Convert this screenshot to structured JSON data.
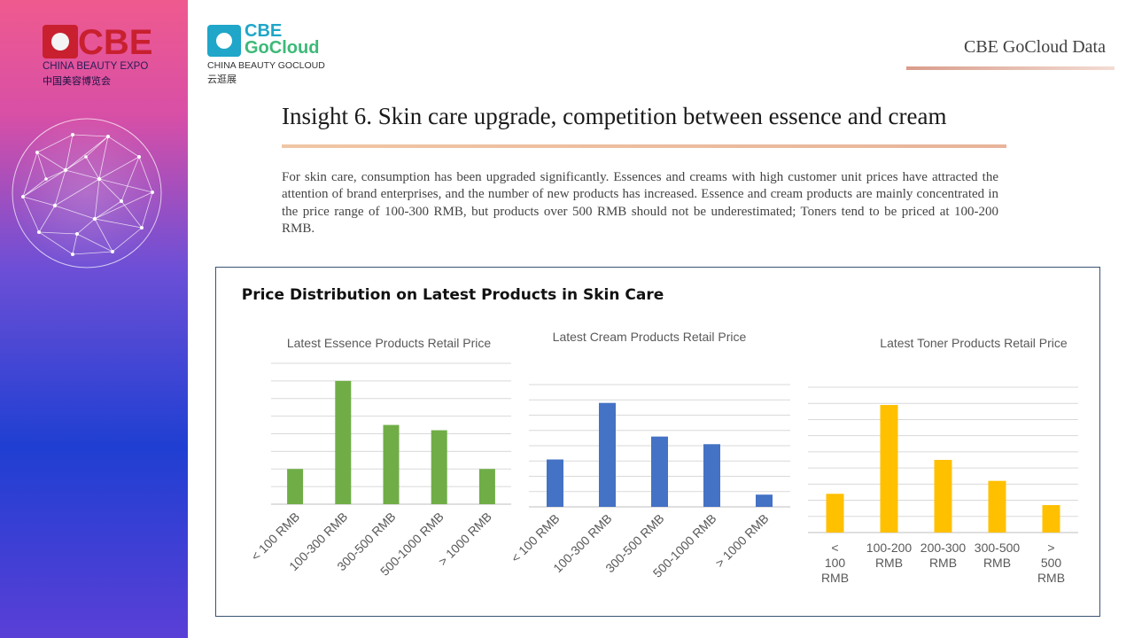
{
  "sidebar_logo": {
    "brand": "CBE",
    "subtitle": "CHINA BEAUTY EXPO",
    "chinese": "中国美容博览会"
  },
  "gocloud_logo": {
    "line1": "CBE",
    "line2": "GoCloud",
    "subtitle": "CHINA BEAUTY GOCLOUD",
    "chinese": "云逛展"
  },
  "header": {
    "label": "CBE GoCloud Data"
  },
  "slide": {
    "title": "Insight 6. Skin care upgrade, competition between essence and cream",
    "body": "For skin care, consumption has been upgraded significantly. Essences and creams with high customer unit prices have attracted the attention of brand enterprises, and the number of new products has increased. Essence and cream products are mainly concentrated in the price range of 100-300 RMB, but products over 500 RMB should not be underestimated; Toners tend to be priced at 100-200 RMB."
  },
  "chart_panel": {
    "title": "Price Distribution on Latest Products in Skin Care"
  },
  "colors": {
    "essence": "#70ad47",
    "cream": "#4472c4",
    "toner": "#ffc000",
    "grid": "#d9d9d9"
  },
  "chart_data": [
    {
      "type": "bar",
      "title": "Latest Essence Products Retail Price",
      "categories": [
        "< 100 RMB",
        "100-300 RMB",
        "300-500 RMB",
        "500-1000 RMB",
        "> 1000 RMB"
      ],
      "values": [
        2,
        7,
        4.5,
        4.2,
        2
      ],
      "ylim": [
        0,
        8
      ],
      "grid": true,
      "tick_rotation": -45
    },
    {
      "type": "bar",
      "title": "Latest Cream Products Retail Price",
      "categories": [
        "< 100 RMB",
        "100-300 RMB",
        "300-500 RMB",
        "500-1000 RMB",
        "> 1000 RMB"
      ],
      "values": [
        3.1,
        6.8,
        4.6,
        4.1,
        0.8
      ],
      "ylim": [
        0,
        8
      ],
      "grid": true,
      "tick_rotation": -45
    },
    {
      "type": "bar",
      "title": "Latest Toner Products Retail Price",
      "categories": [
        "< 100 RMB",
        "100-200 RMB",
        "200-300 RMB",
        "300-500 RMB",
        "> 500 RMB"
      ],
      "values": [
        2.4,
        7.9,
        4.5,
        3.2,
        1.7
      ],
      "ylim": [
        0,
        9
      ],
      "grid": true,
      "tick_rotation": 0
    }
  ]
}
